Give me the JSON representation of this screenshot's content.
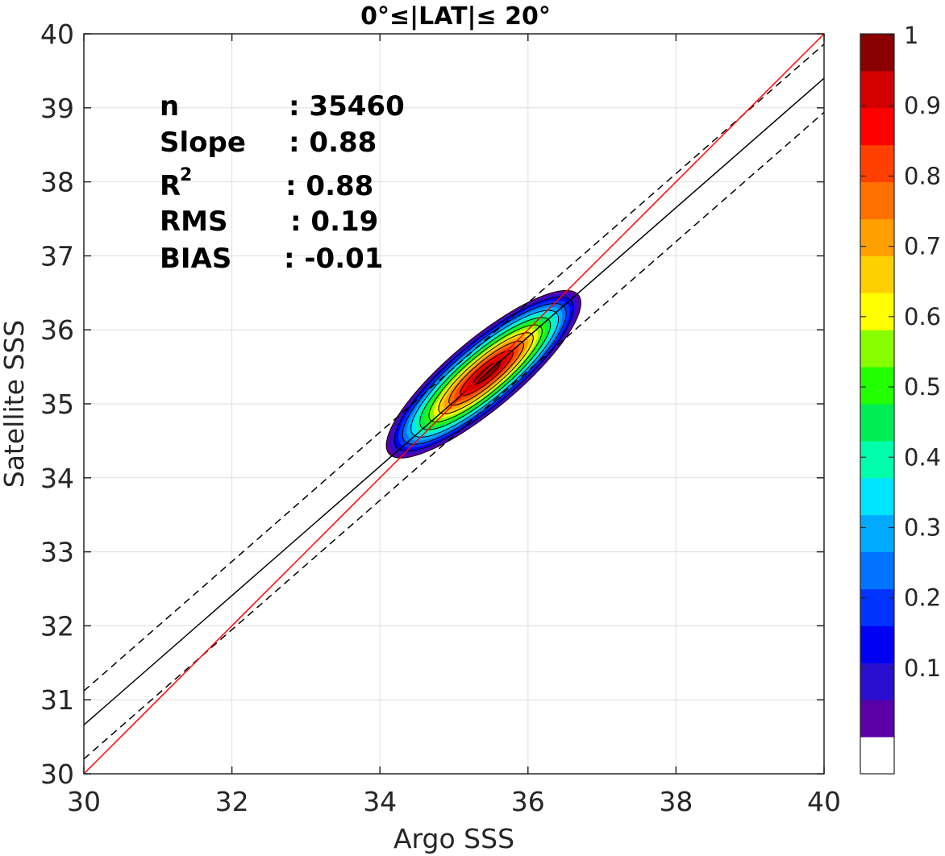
{
  "chart_data": {
    "type": "contour-scatter",
    "title": "0°≤|LAT|≤ 20°",
    "xlabel": "Argo SSS",
    "ylabel": "Satellite SSS",
    "xlim": [
      30,
      40
    ],
    "ylim": [
      30,
      40
    ],
    "x_ticks": [
      "30",
      "32",
      "34",
      "36",
      "38",
      "40"
    ],
    "y_ticks": [
      "30",
      "31",
      "32",
      "33",
      "34",
      "35",
      "36",
      "37",
      "38",
      "39",
      "40"
    ],
    "grid": true,
    "stats": [
      {
        "label": "n",
        "value": ": 35460"
      },
      {
        "label": "Slope",
        "value": ": 0.88"
      },
      {
        "label": "R",
        "sup": "2",
        "value": ": 0.88"
      },
      {
        "label": "RMS",
        "value": ": 0.19"
      },
      {
        "label": "BIAS",
        "value": ": -0.01"
      }
    ],
    "lines": {
      "identity": {
        "from": [
          30,
          30
        ],
        "to": [
          40,
          40
        ],
        "color": "#ff0000"
      },
      "fit": {
        "from": [
          30,
          30.66
        ],
        "to": [
          40,
          39.4
        ],
        "color": "#000000"
      },
      "fit_upper": {
        "from": [
          30,
          31.12
        ],
        "to": [
          40,
          39.86
        ],
        "color": "#000000",
        "dash": true
      },
      "fit_lower": {
        "from": [
          30,
          30.2
        ],
        "to": [
          40,
          38.94
        ],
        "color": "#000000",
        "dash": true
      }
    },
    "density": {
      "center": [
        35.45,
        35.42
      ],
      "angle_deg": 40,
      "levels": [
        0.05,
        0.1,
        0.15,
        0.2,
        0.25,
        0.3,
        0.35,
        0.4,
        0.45,
        0.5,
        0.55,
        0.6,
        0.65,
        0.7,
        0.75,
        0.8,
        0.85,
        0.9,
        0.95,
        1.0
      ],
      "outer_semi_axes": [
        1.67,
        0.47
      ],
      "outer_center": [
        35.4,
        35.4
      ]
    },
    "colorbar": {
      "ticks": [
        "0.1",
        "0.2",
        "0.3",
        "0.4",
        "0.5",
        "0.6",
        "0.7",
        "0.8",
        "0.9",
        "1"
      ],
      "tick_values": [
        0.1,
        0.2,
        0.3,
        0.4,
        0.5,
        0.6,
        0.7,
        0.8,
        0.9,
        1.0
      ],
      "colors": [
        "#ffffff",
        "#5a00a8",
        "#2b0fd1",
        "#0000f5",
        "#0033ff",
        "#0073ff",
        "#00aaff",
        "#00e5ff",
        "#00ffaa",
        "#00ee55",
        "#22ff00",
        "#88ff00",
        "#ffff00",
        "#ffd000",
        "#ffa000",
        "#ff7000",
        "#ff4000",
        "#ff0000",
        "#d40000",
        "#8b0000"
      ]
    }
  }
}
